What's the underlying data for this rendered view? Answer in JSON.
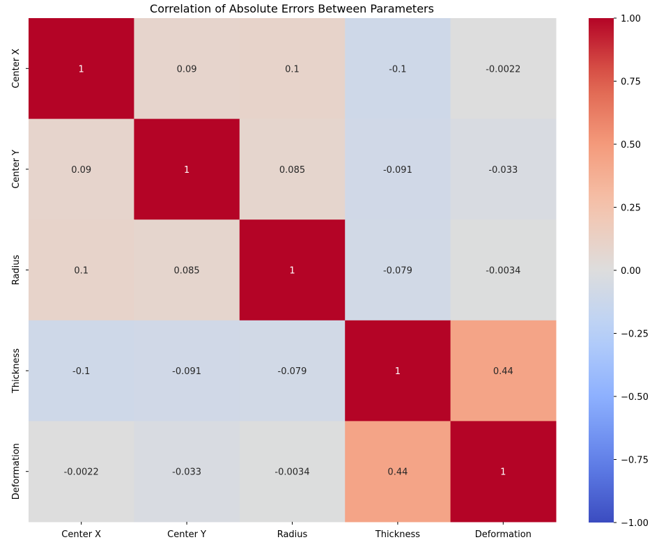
{
  "chart_data": {
    "type": "heatmap",
    "title": "Correlation of Absolute Errors Between Parameters",
    "xlabel": "",
    "ylabel": "",
    "x_categories": [
      "Center X",
      "Center Y",
      "Radius",
      "Thickness",
      "Deformation"
    ],
    "y_categories": [
      "Center X",
      "Center Y",
      "Radius",
      "Thickness",
      "Deformation"
    ],
    "values": [
      [
        1,
        0.09,
        0.1,
        -0.1,
        -0.0022
      ],
      [
        0.09,
        1,
        0.085,
        -0.091,
        -0.033
      ],
      [
        0.1,
        0.085,
        1,
        -0.079,
        -0.0034
      ],
      [
        -0.1,
        -0.091,
        -0.079,
        1,
        0.44
      ],
      [
        -0.0022,
        -0.033,
        -0.0034,
        0.44,
        1
      ]
    ],
    "annotations": [
      [
        "1",
        "0.09",
        "0.1",
        "-0.1",
        "-0.0022"
      ],
      [
        "0.09",
        "1",
        "0.085",
        "-0.091",
        "-0.033"
      ],
      [
        "0.1",
        "0.085",
        "1",
        "-0.079",
        "-0.0034"
      ],
      [
        "-0.1",
        "-0.091",
        "-0.079",
        "1",
        "0.44"
      ],
      [
        "-0.0022",
        "-0.033",
        "-0.0034",
        "0.44",
        "1"
      ]
    ],
    "colormap": "coolwarm",
    "vmin": -1,
    "vmax": 1,
    "colorbar_ticks": [
      1.0,
      0.75,
      0.5,
      0.25,
      0.0,
      -0.25,
      -0.5,
      -0.75,
      -1.0
    ],
    "colorbar_tick_labels": [
      "1.00",
      "0.75",
      "0.50",
      "0.25",
      "0.00",
      "−0.25",
      "−0.50",
      "−0.75",
      "−1.00"
    ],
    "grid": false,
    "colors": {
      "text_on_dark": "#ffffff",
      "text_on_light": "#262626",
      "axis_text": "#000000"
    }
  }
}
